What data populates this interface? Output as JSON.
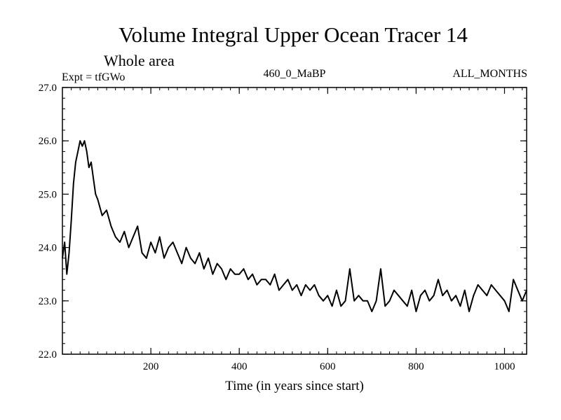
{
  "header": {
    "title": "Volume Integral Upper Ocean Tracer 14",
    "subtitle": "Whole area",
    "experiment": "Expt = tfGWo",
    "run_id": "460_0_MaBP",
    "months": "ALL_MONTHS"
  },
  "chart_data": {
    "type": "line",
    "title": "Volume Integral Upper Ocean Tracer 14",
    "subtitle": "Whole area",
    "xlabel": "Time (in years since start)",
    "ylabel": "",
    "xlim": [
      0,
      1050
    ],
    "ylim": [
      22.0,
      27.0
    ],
    "x_ticks": [
      200,
      400,
      600,
      800,
      1000
    ],
    "x_tick_labels": [
      "200",
      "400",
      "600",
      "800",
      "1000"
    ],
    "y_ticks": [
      22.0,
      23.0,
      24.0,
      25.0,
      26.0,
      27.0
    ],
    "y_tick_labels": [
      "22.0",
      "23.0",
      "24.0",
      "25.0",
      "26.0",
      "27.0"
    ],
    "grid": false,
    "series": [
      {
        "name": "Tracer 14",
        "color": "#000000",
        "x": [
          0,
          5,
          10,
          15,
          20,
          25,
          30,
          35,
          40,
          45,
          50,
          55,
          60,
          65,
          70,
          75,
          80,
          90,
          100,
          110,
          120,
          130,
          140,
          150,
          160,
          170,
          180,
          190,
          200,
          210,
          220,
          230,
          240,
          250,
          260,
          270,
          280,
          290,
          300,
          310,
          320,
          330,
          340,
          350,
          360,
          370,
          380,
          390,
          400,
          410,
          420,
          430,
          440,
          450,
          460,
          470,
          480,
          490,
          500,
          510,
          520,
          530,
          540,
          550,
          560,
          570,
          580,
          590,
          600,
          610,
          620,
          630,
          640,
          650,
          660,
          670,
          680,
          690,
          700,
          710,
          720,
          730,
          740,
          750,
          760,
          770,
          780,
          790,
          800,
          810,
          820,
          830,
          840,
          850,
          860,
          870,
          880,
          890,
          900,
          910,
          920,
          930,
          940,
          950,
          960,
          970,
          980,
          990,
          1000,
          1010,
          1020,
          1030,
          1040,
          1050
        ],
        "values": [
          23.8,
          24.1,
          23.5,
          23.9,
          24.5,
          25.2,
          25.6,
          25.8,
          26.0,
          25.9,
          26.0,
          25.8,
          25.5,
          25.6,
          25.3,
          25.0,
          24.9,
          24.6,
          24.7,
          24.4,
          24.2,
          24.1,
          24.3,
          24.0,
          24.2,
          24.4,
          23.9,
          23.8,
          24.1,
          23.9,
          24.2,
          23.8,
          24.0,
          24.1,
          23.9,
          23.7,
          24.0,
          23.8,
          23.7,
          23.9,
          23.6,
          23.8,
          23.5,
          23.7,
          23.6,
          23.4,
          23.6,
          23.5,
          23.5,
          23.6,
          23.4,
          23.5,
          23.3,
          23.4,
          23.4,
          23.3,
          23.5,
          23.2,
          23.3,
          23.4,
          23.2,
          23.3,
          23.1,
          23.3,
          23.2,
          23.3,
          23.1,
          23.0,
          23.1,
          22.9,
          23.2,
          22.9,
          23.0,
          23.6,
          23.0,
          23.1,
          23.0,
          23.0,
          22.8,
          23.0,
          23.6,
          22.9,
          23.0,
          23.2,
          23.1,
          23.0,
          22.9,
          23.2,
          22.8,
          23.1,
          23.2,
          23.0,
          23.1,
          23.4,
          23.1,
          23.2,
          23.0,
          23.1,
          22.9,
          23.2,
          22.8,
          23.1,
          23.3,
          23.2,
          23.1,
          23.3,
          23.2,
          23.1,
          23.0,
          22.8,
          23.4,
          23.2,
          23.0,
          23.2
        ]
      }
    ]
  }
}
